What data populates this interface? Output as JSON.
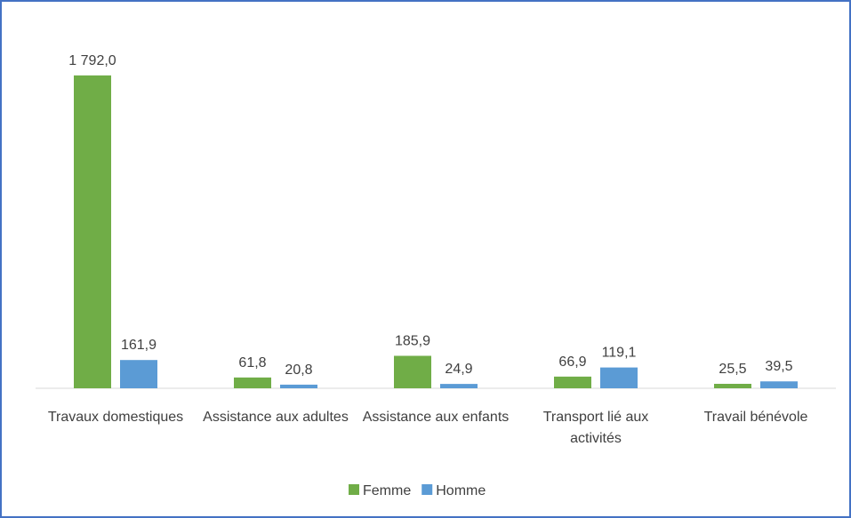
{
  "chart_data": {
    "type": "bar",
    "categories": [
      "Travaux domestiques",
      "Assistance aux adultes",
      "Assistance aux enfants",
      "Transport lié aux activités",
      "Travail bénévole"
    ],
    "series": [
      {
        "name": "Femme",
        "color": "#70ad47",
        "values": [
          1792.0,
          61.8,
          185.9,
          66.9,
          25.5
        ],
        "value_labels": [
          "1 792,0",
          "61,8",
          "185,9",
          "66,9",
          "25,5"
        ]
      },
      {
        "name": "Homme",
        "color": "#5b9bd5",
        "values": [
          161.9,
          20.8,
          24.9,
          119.1,
          39.5
        ],
        "value_labels": [
          "161,9",
          "20,8",
          "24,9",
          "119,1",
          "39,5"
        ]
      }
    ],
    "ylim": [
      0,
      2000
    ],
    "legend": "bottom"
  }
}
